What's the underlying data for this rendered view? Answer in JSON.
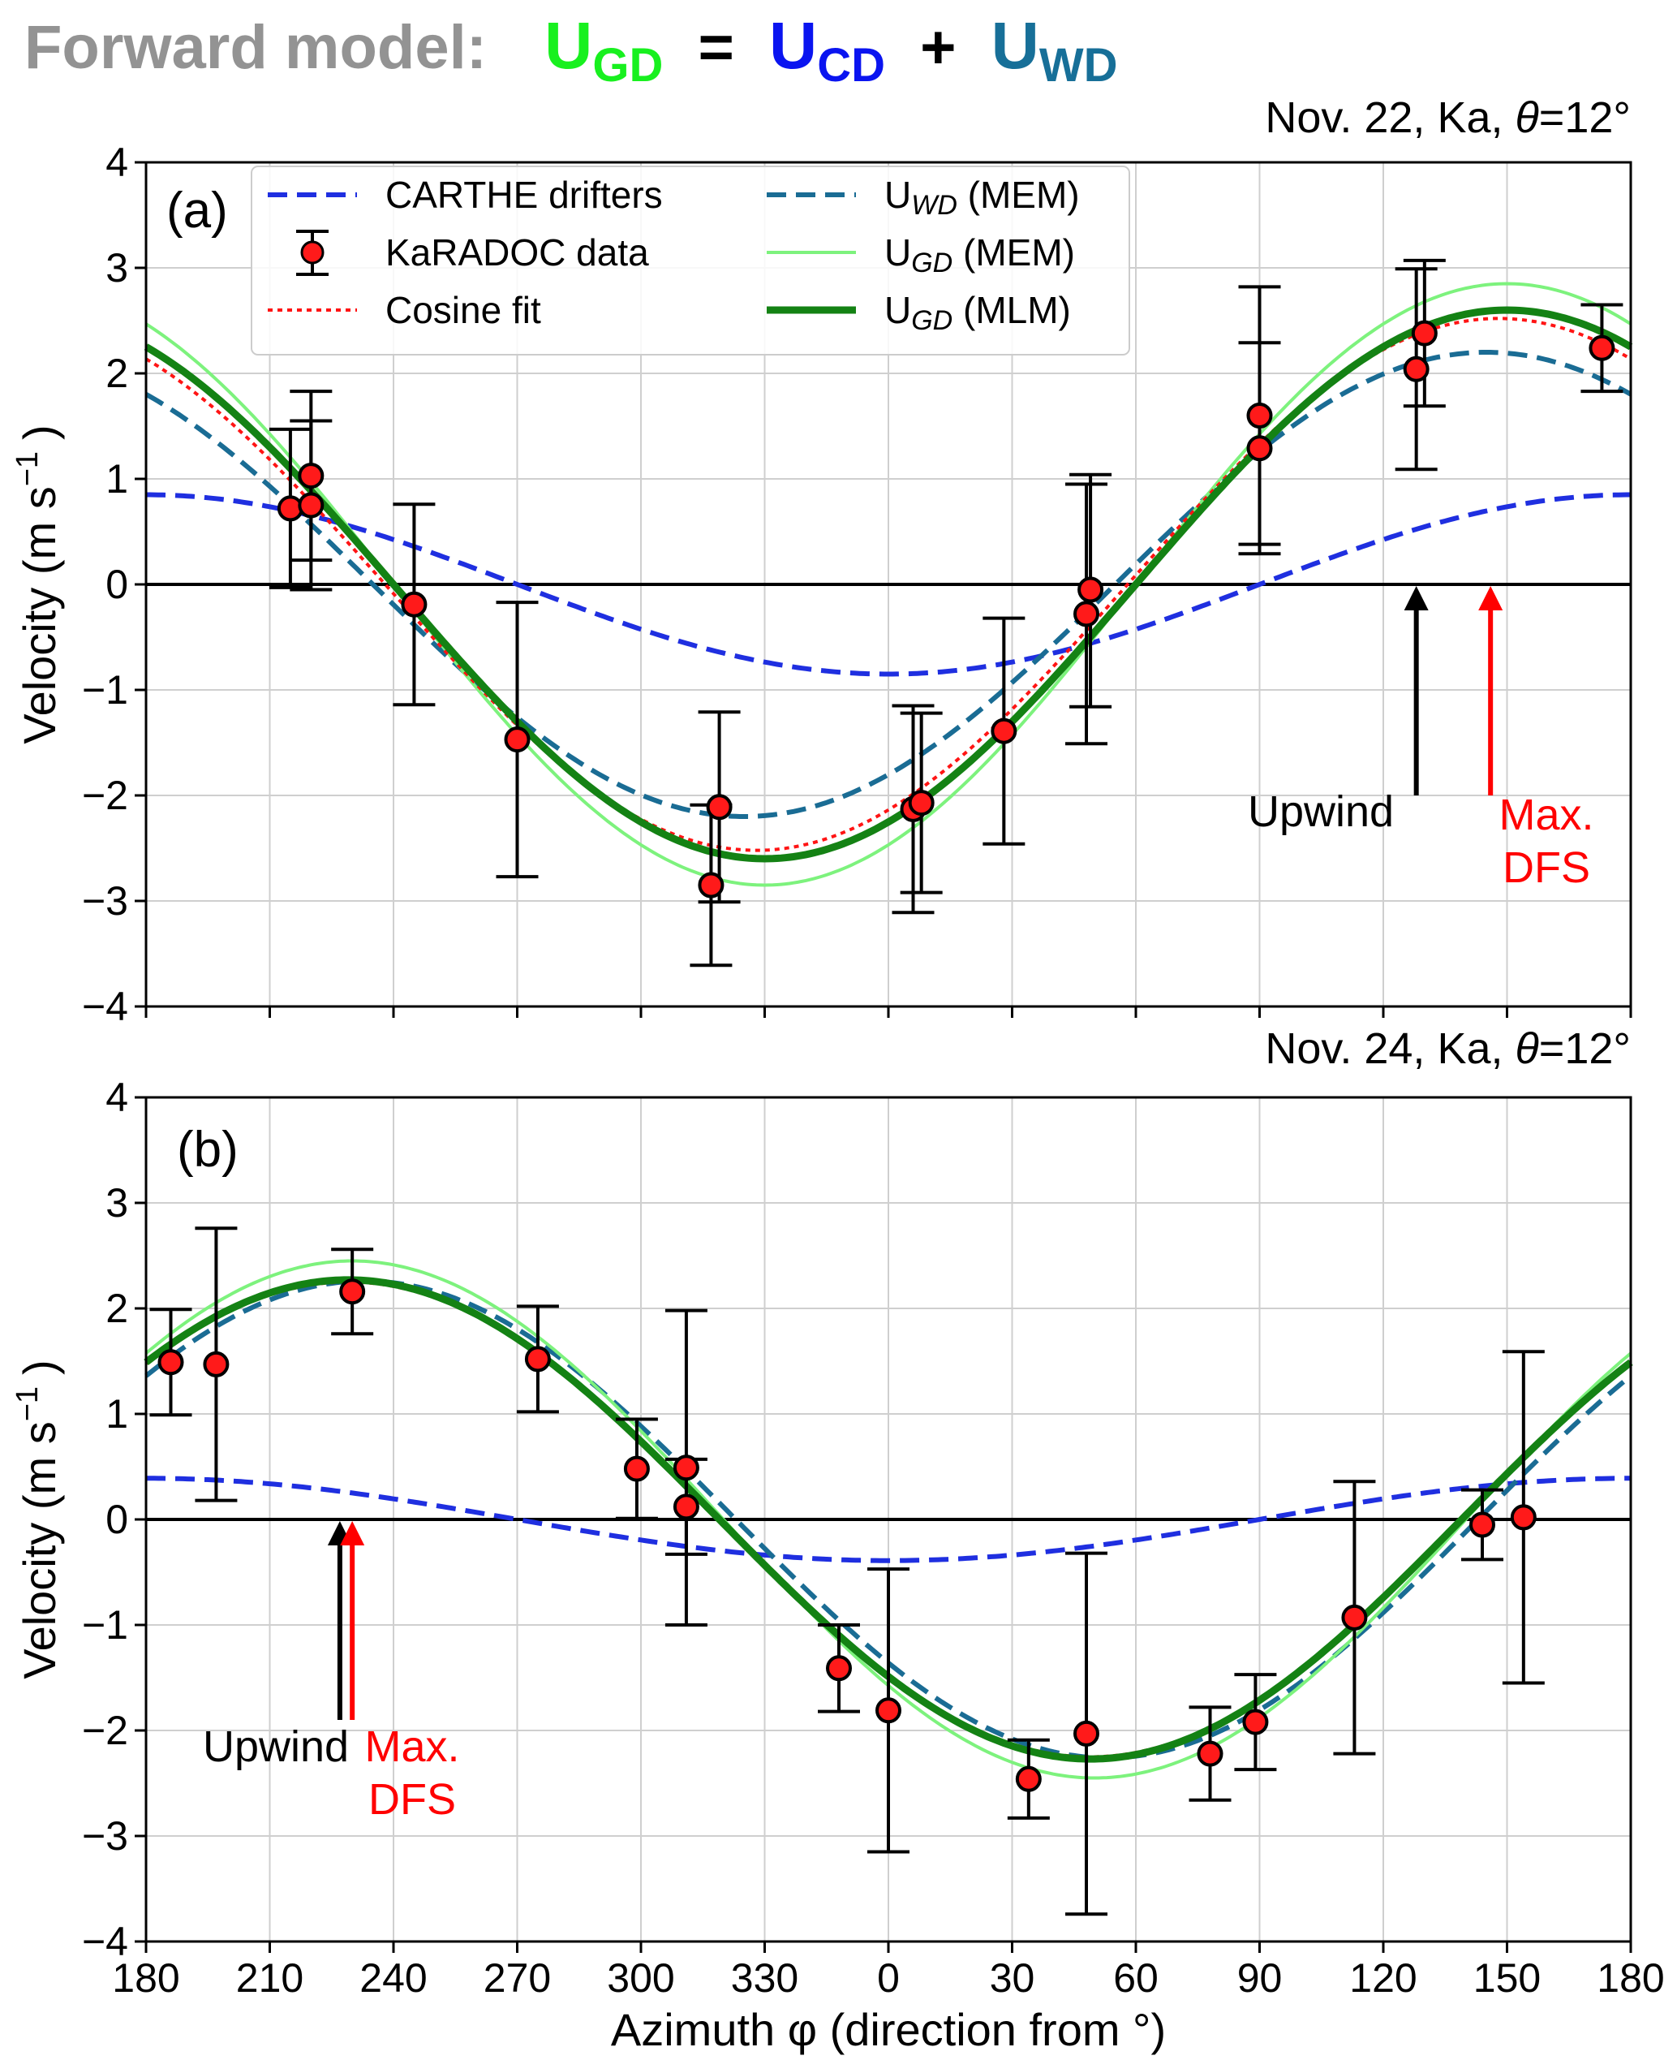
{
  "title": {
    "prefix": "Forward model:",
    "u1": "U",
    "sub1": "GD",
    "eq": "=",
    "u2": "U",
    "sub2": "CD",
    "plus": "+",
    "u3": "U",
    "sub3": "WD",
    "colors": {
      "prefix": "#939393",
      "gd": "#18f01f",
      "eq": "#000000",
      "cd": "#0a14f0",
      "wd": "#176f98"
    }
  },
  "colors": {
    "carthe": "#1f2fe0",
    "uwd_mem": "#1a6c94",
    "ugd_mem": "#7df27d",
    "ugd_mlm": "#148214",
    "cos_fit": "#ff1414",
    "marker": "#ff1a1a",
    "upwind": "#000000",
    "maxdfs": "#ff0000"
  },
  "x_axis": {
    "label": "Azimuth φ  (direction from  °)",
    "ticks": [
      "180",
      "210",
      "240",
      "270",
      "300",
      "330",
      "0",
      "30",
      "60",
      "90",
      "120",
      "150",
      "180"
    ]
  },
  "y_axis": {
    "label": "Velocity (m s",
    "label_sup": "−1",
    "label_end": ")",
    "ticks": [
      "−4",
      "−3",
      "−2",
      "−1",
      "0",
      "1",
      "2",
      "3",
      "4"
    ]
  },
  "legend": {
    "carthe": "CARTHE drifters",
    "karadoc": "KaRADOC data",
    "cosine": "Cosine fit",
    "uwd_mem_u": "U",
    "uwd_mem_sub": "WD",
    "uwd_mem_rest": " (MEM)",
    "ugd_mem_u": "U",
    "ugd_mem_sub": "GD",
    "ugd_mem_rest": " (MEM)",
    "ugd_mlm_u": "U",
    "ugd_mlm_sub": "GD",
    "ugd_mlm_rest": " (MLM)"
  },
  "annotations": {
    "upwind": "Upwind",
    "maxdfs_1": "Max.",
    "maxdfs_2": "DFS"
  },
  "chart_data": [
    {
      "type": "scatter",
      "panel": "(a)",
      "subtitle_prefix": "Nov. 22, Ka, ",
      "subtitle_theta": "θ",
      "subtitle_suffix": "=12°",
      "xlim": [
        0,
        360
      ],
      "ylim": [
        -4,
        4
      ],
      "x_note": "unwrapped azimuth offset (deg) from 180: value 0 = 180°, 180 = 0°, 360 = 180°",
      "upwind_x": 308,
      "maxdfs_x": 326,
      "arrow_y": [
        -2.0,
        0.0
      ],
      "models": {
        "carthe": {
          "amp": 0.85,
          "peak": 0
        },
        "uwd_mem": {
          "amp": 2.2,
          "peak": 325
        },
        "ugd_mem": {
          "amp": 2.85,
          "peak": 330
        },
        "cos_fit": {
          "amp": 2.52,
          "peak": 328
        },
        "ugd_mlm": {
          "amp": 2.6,
          "peak": 330
        }
      },
      "points": [
        {
          "x": 35,
          "y": 0.72,
          "lo": -0.03,
          "hi": 1.47
        },
        {
          "x": 40,
          "y": 1.03,
          "lo": 0.23,
          "hi": 1.83
        },
        {
          "x": 40,
          "y": 0.75,
          "lo": -0.05,
          "hi": 1.55
        },
        {
          "x": 65,
          "y": -0.19,
          "lo": -1.14,
          "hi": 0.76
        },
        {
          "x": 90,
          "y": -1.47,
          "lo": -2.77,
          "hi": -0.17
        },
        {
          "x": 137,
          "y": -2.85,
          "lo": -3.61,
          "hi": -2.09
        },
        {
          "x": 139,
          "y": -2.11,
          "lo": -3.01,
          "hi": -1.21
        },
        {
          "x": 186,
          "y": -2.13,
          "lo": -3.11,
          "hi": -1.15
        },
        {
          "x": 188,
          "y": -2.07,
          "lo": -2.92,
          "hi": -1.22
        },
        {
          "x": 208,
          "y": -1.39,
          "lo": -2.46,
          "hi": -0.32
        },
        {
          "x": 228,
          "y": -0.28,
          "lo": -1.51,
          "hi": 0.95
        },
        {
          "x": 229,
          "y": -0.05,
          "lo": -1.16,
          "hi": 1.04
        },
        {
          "x": 270,
          "y": 1.6,
          "lo": 0.38,
          "hi": 2.82
        },
        {
          "x": 270,
          "y": 1.29,
          "lo": 0.29,
          "hi": 2.29
        },
        {
          "x": 308,
          "y": 2.04,
          "lo": 1.09,
          "hi": 2.99
        },
        {
          "x": 310,
          "y": 2.38,
          "lo": 1.69,
          "hi": 3.07
        },
        {
          "x": 353,
          "y": 2.24,
          "lo": 1.83,
          "hi": 2.65
        }
      ]
    },
    {
      "type": "scatter",
      "panel": "(b)",
      "subtitle_prefix": "Nov. 24, Ka, ",
      "subtitle_theta": "θ",
      "subtitle_suffix": "=12°",
      "xlim": [
        0,
        360
      ],
      "ylim": [
        -4,
        4
      ],
      "x_note": "unwrapped azimuth offset (deg) from 180: value 0 = 180°, 180 = 0°, 360 = 180°",
      "upwind_x": 47,
      "maxdfs_x": 50,
      "arrow_y": [
        -1.9,
        0.0
      ],
      "models": {
        "carthe": {
          "amp": 0.39,
          "peak": 0
        },
        "uwd_mem": {
          "amp": 2.26,
          "peak": 53
        },
        "ugd_mem": {
          "amp": 2.45,
          "peak": 50
        },
        "cos_fit": {
          "amp": 2.25,
          "peak": 49
        },
        "ugd_mlm": {
          "amp": 2.27,
          "peak": 49
        }
      },
      "points": [
        {
          "x": 6,
          "y": 1.49,
          "lo": 0.99,
          "hi": 1.99
        },
        {
          "x": 17,
          "y": 1.47,
          "lo": 0.18,
          "hi": 2.76
        },
        {
          "x": 50,
          "y": 2.16,
          "lo": 1.76,
          "hi": 2.56
        },
        {
          "x": 95,
          "y": 1.52,
          "lo": 1.02,
          "hi": 2.02
        },
        {
          "x": 119,
          "y": 0.48,
          "lo": 0.01,
          "hi": 0.95
        },
        {
          "x": 131,
          "y": 0.49,
          "lo": -1.0,
          "hi": 1.98
        },
        {
          "x": 131,
          "y": 0.12,
          "lo": -0.33,
          "hi": 0.57
        },
        {
          "x": 168,
          "y": -1.41,
          "lo": -1.82,
          "hi": -1.0
        },
        {
          "x": 180,
          "y": -1.81,
          "lo": -3.15,
          "hi": -0.47
        },
        {
          "x": 214,
          "y": -2.46,
          "lo": -2.83,
          "hi": -2.09
        },
        {
          "x": 228,
          "y": -2.03,
          "lo": -3.74,
          "hi": -0.32
        },
        {
          "x": 258,
          "y": -2.22,
          "lo": -2.66,
          "hi": -1.78
        },
        {
          "x": 269,
          "y": -1.92,
          "lo": -2.37,
          "hi": -1.47
        },
        {
          "x": 293,
          "y": -0.93,
          "lo": -2.22,
          "hi": 0.36
        },
        {
          "x": 324,
          "y": -0.05,
          "lo": -0.38,
          "hi": 0.28
        },
        {
          "x": 334,
          "y": 0.02,
          "lo": -1.55,
          "hi": 1.59
        }
      ]
    }
  ]
}
